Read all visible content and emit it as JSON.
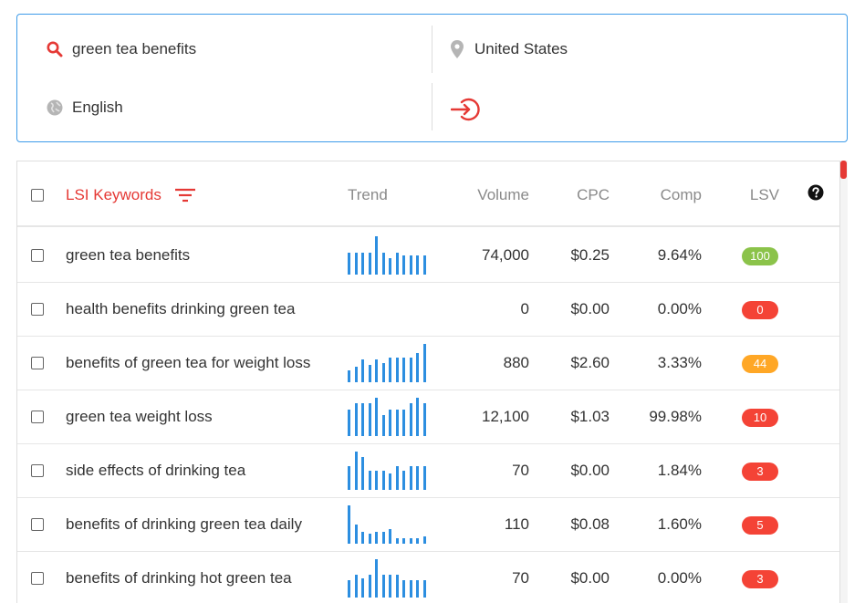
{
  "search": {
    "keyword_value": "green tea benefits",
    "location_value": "United States",
    "language_value": "English"
  },
  "table": {
    "headers": {
      "keyword": "LSI Keywords",
      "trend": "Trend",
      "volume": "Volume",
      "cpc": "CPC",
      "comp": "Comp",
      "lsv": "LSV"
    },
    "rows": [
      {
        "keyword": "green tea benefits",
        "volume": "74,000",
        "cpc": "$0.25",
        "comp": "9.64%",
        "lsv": "100",
        "lsv_color": "#8bc34a",
        "trend": [
          0.58,
          0.58,
          0.58,
          0.58,
          1.0,
          0.58,
          0.42,
          0.58,
          0.5,
          0.5,
          0.5,
          0.5
        ]
      },
      {
        "keyword": "health benefits drinking green tea",
        "volume": "0",
        "cpc": "$0.00",
        "comp": "0.00%",
        "lsv": "0",
        "lsv_color": "#f44336",
        "trend": []
      },
      {
        "keyword": "benefits of green tea for weight loss",
        "volume": "880",
        "cpc": "$2.60",
        "comp": "3.33%",
        "lsv": "44",
        "lsv_color": "#ffa726",
        "trend": [
          0.3,
          0.4,
          0.6,
          0.45,
          0.6,
          0.5,
          0.65,
          0.65,
          0.65,
          0.65,
          0.75,
          1.0
        ]
      },
      {
        "keyword": "green tea weight loss",
        "volume": "12,100",
        "cpc": "$1.03",
        "comp": "99.98%",
        "lsv": "10",
        "lsv_color": "#f44336",
        "trend": [
          0.7,
          0.85,
          0.85,
          0.85,
          1.0,
          0.55,
          0.7,
          0.7,
          0.7,
          0.85,
          1.0,
          0.85
        ]
      },
      {
        "keyword": "side effects of drinking tea",
        "volume": "70",
        "cpc": "$0.00",
        "comp": "1.84%",
        "lsv": "3",
        "lsv_color": "#f44336",
        "trend": [
          0.62,
          1.0,
          0.85,
          0.5,
          0.5,
          0.5,
          0.42,
          0.62,
          0.5,
          0.62,
          0.62,
          0.62
        ]
      },
      {
        "keyword": "benefits of drinking green tea daily",
        "volume": "110",
        "cpc": "$0.08",
        "comp": "1.60%",
        "lsv": "5",
        "lsv_color": "#f44336",
        "trend": [
          1.0,
          0.5,
          0.3,
          0.25,
          0.3,
          0.3,
          0.38,
          0.15,
          0.15,
          0.15,
          0.15,
          0.2
        ]
      },
      {
        "keyword": "benefits of drinking hot green tea",
        "volume": "70",
        "cpc": "$0.00",
        "comp": "0.00%",
        "lsv": "3",
        "lsv_color": "#f44336",
        "trend": [
          0.45,
          0.6,
          0.5,
          0.6,
          1.0,
          0.6,
          0.6,
          0.6,
          0.45,
          0.45,
          0.45,
          0.45
        ]
      }
    ]
  }
}
